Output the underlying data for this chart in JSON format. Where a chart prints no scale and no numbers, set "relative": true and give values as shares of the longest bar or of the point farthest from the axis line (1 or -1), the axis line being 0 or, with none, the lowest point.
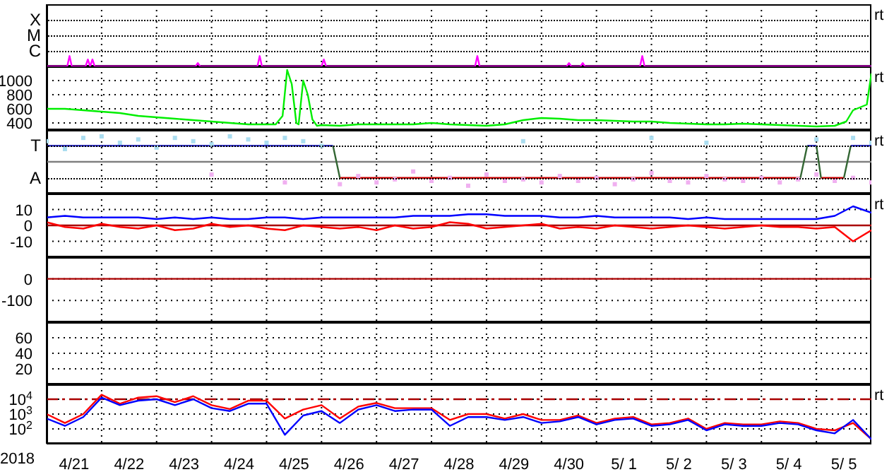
{
  "chart_data": [
    {
      "type": "line",
      "relative": true,
      "xlim": [
        "2018-04-21T00:00",
        "2018-05-06T00:00"
      ],
      "xticks": [
        {
          "value": "2018-04-22T00:00",
          "label": null
        },
        {
          "value": "2018-04-23T00:00",
          "label": null
        },
        {
          "value": "2018-04-24T00:00",
          "label": null
        },
        {
          "value": "2018-04-25T00:00",
          "label": null
        },
        {
          "value": "2018-04-26T00:00",
          "label": null
        },
        {
          "value": "2018-04-27T00:00",
          "label": null
        },
        {
          "value": "2018-04-28T00:00",
          "label": null
        },
        {
          "value": "2018-04-29T00:00",
          "label": null
        },
        {
          "value": "2018-04-30T00:00",
          "label": null
        },
        {
          "value": "2018-05-01T00:00",
          "label": null
        },
        {
          "value": "2018-05-02T00:00",
          "label": null
        },
        {
          "value": "2018-05-03T00:00",
          "label": null
        },
        {
          "value": "2018-05-04T00:00",
          "label": null
        },
        {
          "value": "2018-05-05T00:00",
          "label": null
        }
      ],
      "grid": true,
      "tick_labels": "y",
      "annotations": [
        "rt",
        "X",
        "M",
        "C"
      ],
      "series": [
        {
          "color": "#ff00ff",
          "x": [
            "2018-04-21T00:00",
            "2018-04-21T09:00",
            "2018-04-21T10:00",
            "2018-04-21T11:00",
            "2018-04-21T17:00",
            "2018-04-21T18:00",
            "2018-04-21T19:00",
            "2018-04-21T20:00",
            "2018-04-21T21:00",
            "2018-04-23T17:00",
            "2018-04-23T18:00",
            "2018-04-23T19:00",
            "2018-04-24T20:00",
            "2018-04-24T21:00",
            "2018-04-24T22:00",
            "2018-04-26T00:00",
            "2018-04-26T01:00",
            "2018-04-26T02:00",
            "2018-04-28T19:00",
            "2018-04-28T20:00",
            "2018-04-28T21:00",
            "2018-04-30T11:00",
            "2018-04-30T12:00",
            "2018-04-30T13:00",
            "2018-04-30T17:00",
            "2018-04-30T18:00",
            "2018-04-30T19:00",
            "2018-05-01T19:00",
            "2018-05-01T20:00",
            "2018-05-01T21:00",
            "2018-05-06T00:00"
          ],
          "values": [
            0,
            0,
            1,
            0,
            0,
            0.67,
            0,
            0.67,
            0,
            0,
            0.33,
            0,
            0,
            1,
            0,
            0,
            0.67,
            0,
            0,
            1,
            0,
            0,
            0.33,
            0,
            0,
            0.33,
            0,
            0,
            1,
            0,
            0
          ]
        }
      ]
    },
    {
      "type": "line",
      "ylim": [
        300,
        1200
      ],
      "yticks": [
        1000,
        800,
        600,
        400
      ],
      "xlim": [
        "2018-04-21T00:00",
        "2018-05-06T00:00"
      ],
      "xticks": [
        {
          "value": "2018-04-22T00:00",
          "label": null
        },
        {
          "value": "2018-04-23T00:00",
          "label": null
        },
        {
          "value": "2018-04-24T00:00",
          "label": null
        },
        {
          "value": "2018-04-25T00:00",
          "label": null
        },
        {
          "value": "2018-04-26T00:00",
          "label": null
        },
        {
          "value": "2018-04-27T00:00",
          "label": null
        },
        {
          "value": "2018-04-28T00:00",
          "label": null
        },
        {
          "value": "2018-04-29T00:00",
          "label": null
        },
        {
          "value": "2018-04-30T00:00",
          "label": null
        },
        {
          "value": "2018-05-01T00:00",
          "label": null
        },
        {
          "value": "2018-05-02T00:00",
          "label": null
        },
        {
          "value": "2018-05-03T00:00",
          "label": null
        },
        {
          "value": "2018-05-04T00:00",
          "label": null
        },
        {
          "value": "2018-05-05T00:00",
          "label": null
        }
      ],
      "grid": true,
      "tick_labels": "y",
      "annotations": [
        "rt"
      ],
      "series": [
        {
          "color": "#00ee00",
          "x": [
            "2018-04-21T00:00",
            "2018-04-21T08:00",
            "2018-04-21T16:00",
            "2018-04-22T00:00",
            "2018-04-22T08:00",
            "2018-04-22T16:00",
            "2018-04-23T00:00",
            "2018-04-23T08:00",
            "2018-04-23T16:00",
            "2018-04-24T00:00",
            "2018-04-24T08:00",
            "2018-04-24T16:00",
            "2018-04-25T00:00",
            "2018-04-25T04:00",
            "2018-04-25T07:00",
            "2018-04-25T09:00",
            "2018-04-25T11:00",
            "2018-04-25T13:00",
            "2018-04-25T14:00",
            "2018-04-25T16:00",
            "2018-04-25T18:00",
            "2018-04-25T20:00",
            "2018-04-25T22:00",
            "2018-04-26T00:00",
            "2018-04-26T08:00",
            "2018-04-26T16:00",
            "2018-04-27T00:00",
            "2018-04-27T08:00",
            "2018-04-27T16:00",
            "2018-04-28T00:00",
            "2018-04-28T08:00",
            "2018-04-28T16:00",
            "2018-04-29T00:00",
            "2018-04-29T08:00",
            "2018-04-29T16:00",
            "2018-04-30T00:00",
            "2018-04-30T08:00",
            "2018-04-30T16:00",
            "2018-05-01T00:00",
            "2018-05-01T08:00",
            "2018-05-01T16:00",
            "2018-05-02T00:00",
            "2018-05-02T08:00",
            "2018-05-02T16:00",
            "2018-05-03T00:00",
            "2018-05-03T08:00",
            "2018-05-03T16:00",
            "2018-05-04T00:00",
            "2018-05-04T08:00",
            "2018-05-04T16:00",
            "2018-05-05T00:00",
            "2018-05-05T08:00",
            "2018-05-05T13:00",
            "2018-05-05T16:00",
            "2018-05-05T22:00",
            "2018-05-06T00:00"
          ],
          "values": [
            600,
            600,
            580,
            560,
            540,
            500,
            480,
            460,
            440,
            420,
            400,
            380,
            380,
            380,
            500,
            1150,
            950,
            400,
            380,
            1000,
            800,
            450,
            360,
            370,
            360,
            380,
            380,
            380,
            380,
            400,
            380,
            370,
            360,
            380,
            440,
            470,
            460,
            440,
            440,
            430,
            420,
            420,
            400,
            390,
            380,
            380,
            390,
            380,
            370,
            360,
            350,
            360,
            420,
            580,
            660,
            1100
          ]
        }
      ]
    },
    {
      "type": "line",
      "relative": true,
      "xlim": [
        "2018-04-21T00:00",
        "2018-05-06T00:00"
      ],
      "xticks": [
        {
          "value": "2018-04-22T00:00",
          "label": null
        },
        {
          "value": "2018-04-23T00:00",
          "label": null
        },
        {
          "value": "2018-04-24T00:00",
          "label": null
        },
        {
          "value": "2018-04-25T00:00",
          "label": null
        },
        {
          "value": "2018-04-26T00:00",
          "label": null
        },
        {
          "value": "2018-04-27T00:00",
          "label": null
        },
        {
          "value": "2018-04-28T00:00",
          "label": null
        },
        {
          "value": "2018-04-29T00:00",
          "label": null
        },
        {
          "value": "2018-04-30T00:00",
          "label": null
        },
        {
          "value": "2018-05-01T00:00",
          "label": null
        },
        {
          "value": "2018-05-02T00:00",
          "label": null
        },
        {
          "value": "2018-05-03T00:00",
          "label": null
        },
        {
          "value": "2018-05-04T00:00",
          "label": null
        },
        {
          "value": "2018-05-05T00:00",
          "label": null
        }
      ],
      "grid": true,
      "tick_labels": "y",
      "annotations": [
        "rt",
        "T",
        "A"
      ],
      "ref_lines": [
        {
          "axis": "y",
          "value": 0,
          "color": "#808080"
        }
      ],
      "x": [
        "2018-04-21T00:00",
        "2018-04-21T08:00",
        "2018-04-21T16:00",
        "2018-04-22T00:00",
        "2018-04-22T08:00",
        "2018-04-22T16:00",
        "2018-04-23T00:00",
        "2018-04-23T08:00",
        "2018-04-23T16:00",
        "2018-04-24T00:00",
        "2018-04-24T08:00",
        "2018-04-24T16:00",
        "2018-04-25T00:00",
        "2018-04-25T08:00",
        "2018-04-25T16:00",
        "2018-04-26T00:00",
        "2018-04-26T08:00",
        "2018-04-26T16:00",
        "2018-04-27T00:00",
        "2018-04-27T08:00",
        "2018-04-27T16:00",
        "2018-04-28T00:00",
        "2018-04-28T08:00",
        "2018-04-28T16:00",
        "2018-04-29T00:00",
        "2018-04-29T08:00",
        "2018-04-29T16:00",
        "2018-04-30T00:00",
        "2018-04-30T08:00",
        "2018-04-30T16:00",
        "2018-05-01T00:00",
        "2018-05-01T08:00",
        "2018-05-01T16:00",
        "2018-05-02T00:00",
        "2018-05-02T08:00",
        "2018-05-02T16:00",
        "2018-05-03T00:00",
        "2018-05-03T08:00",
        "2018-05-03T16:00",
        "2018-05-04T00:00",
        "2018-05-04T08:00",
        "2018-05-04T16:00",
        "2018-05-05T00:00",
        "2018-05-05T08:00",
        "2018-05-05T16:00",
        "2018-05-06T00:00"
      ],
      "series": [
        {
          "type": "scatter",
          "marker": "square",
          "color": "#aaddf0",
          "values": [
            0.81,
            0.5,
            0.94,
            1,
            0.75,
            0.88,
            0.56,
            0.94,
            0.81,
            0.69,
            1,
            0.88,
            0.75,
            0.94,
            0.81,
            0.63,
            null,
            null,
            null,
            null,
            null,
            null,
            null,
            null,
            null,
            null,
            0.81,
            null,
            null,
            null,
            null,
            null,
            null,
            0.94,
            null,
            null,
            0.75,
            null,
            null,
            null,
            null,
            null,
            0.88,
            null,
            0.94,
            0.75
          ]
        },
        {
          "type": "scatter",
          "marker": "square",
          "color": "#f0b0f0",
          "values": [
            null,
            null,
            null,
            null,
            null,
            null,
            null,
            null,
            null,
            -0.5,
            null,
            null,
            null,
            -0.81,
            null,
            null,
            -0.88,
            -0.56,
            -0.81,
            -0.69,
            -0.38,
            -0.75,
            -0.63,
            -0.94,
            -0.5,
            -0.75,
            -0.69,
            -0.81,
            -0.56,
            -0.75,
            -0.63,
            -0.88,
            -0.69,
            -0.44,
            -0.75,
            -0.81,
            -0.56,
            -0.69,
            -0.75,
            -0.63,
            -0.81,
            -0.69,
            -0.5,
            -0.75,
            -0.63,
            -0.81
          ]
        },
        {
          "color": "#3333cc",
          "x": [
            "2018-04-21T00:00",
            "2018-04-26T05:00",
            "2018-04-30T00:00",
            "2018-05-04T20:00",
            "2018-05-05T00:00",
            "2018-05-05T08:00",
            "2018-05-05T15:00",
            "2018-05-06T00:00"
          ],
          "values": [
            0.63,
            0.63,
            null,
            0.63,
            0.63,
            null,
            0.63,
            0.63
          ]
        },
        {
          "color": "#cc0000",
          "x": [
            "2018-04-26T08:00",
            "2018-05-04T17:00",
            "2018-05-04T22:00",
            "2018-05-05T02:00",
            "2018-05-05T12:00"
          ],
          "values": [
            -0.63,
            -0.63,
            null,
            -0.63,
            -0.63
          ]
        },
        {
          "color": "#336633",
          "x": [
            "2018-04-26T05:00",
            "2018-04-26T08:00",
            "2018-04-30T00:00",
            "2018-05-04T17:00",
            "2018-05-04T20:00",
            "2018-05-04T22:00",
            "2018-05-05T00:00",
            "2018-05-05T02:00",
            "2018-05-05T08:00",
            "2018-05-05T12:00",
            "2018-05-05T15:00"
          ],
          "values": [
            0.63,
            -0.63,
            null,
            -0.63,
            0.63,
            null,
            0.63,
            -0.63,
            null,
            -0.63,
            0.63
          ]
        }
      ]
    },
    {
      "type": "line",
      "ylim": [
        -20,
        20
      ],
      "yticks": [
        10,
        0,
        -10
      ],
      "xlim": [
        "2018-04-21T00:00",
        "2018-05-06T00:00"
      ],
      "xticks": [
        {
          "value": "2018-04-22T00:00",
          "label": null
        },
        {
          "value": "2018-04-23T00:00",
          "label": null
        },
        {
          "value": "2018-04-24T00:00",
          "label": null
        },
        {
          "value": "2018-04-25T00:00",
          "label": null
        },
        {
          "value": "2018-04-26T00:00",
          "label": null
        },
        {
          "value": "2018-04-27T00:00",
          "label": null
        },
        {
          "value": "2018-04-28T00:00",
          "label": null
        },
        {
          "value": "2018-04-29T00:00",
          "label": null
        },
        {
          "value": "2018-04-30T00:00",
          "label": null
        },
        {
          "value": "2018-05-01T00:00",
          "label": null
        },
        {
          "value": "2018-05-02T00:00",
          "label": null
        },
        {
          "value": "2018-05-03T00:00",
          "label": null
        },
        {
          "value": "2018-05-04T00:00",
          "label": null
        },
        {
          "value": "2018-05-05T00:00",
          "label": null
        }
      ],
      "grid": true,
      "tick_labels": "y",
      "annotations": [
        "rt"
      ],
      "ref_lines": [
        {
          "axis": "y",
          "value": 0,
          "color": "#aa0000"
        }
      ],
      "x": [
        "2018-04-21T00:00",
        "2018-04-21T08:00",
        "2018-04-21T16:00",
        "2018-04-22T00:00",
        "2018-04-22T08:00",
        "2018-04-22T16:00",
        "2018-04-23T00:00",
        "2018-04-23T08:00",
        "2018-04-23T16:00",
        "2018-04-24T00:00",
        "2018-04-24T08:00",
        "2018-04-24T16:00",
        "2018-04-25T00:00",
        "2018-04-25T08:00",
        "2018-04-25T16:00",
        "2018-04-26T00:00",
        "2018-04-26T08:00",
        "2018-04-26T16:00",
        "2018-04-27T00:00",
        "2018-04-27T08:00",
        "2018-04-27T16:00",
        "2018-04-28T00:00",
        "2018-04-28T08:00",
        "2018-04-28T16:00",
        "2018-04-29T00:00",
        "2018-04-29T08:00",
        "2018-04-29T16:00",
        "2018-04-30T00:00",
        "2018-04-30T08:00",
        "2018-04-30T16:00",
        "2018-05-01T00:00",
        "2018-05-01T08:00",
        "2018-05-01T16:00",
        "2018-05-02T00:00",
        "2018-05-02T08:00",
        "2018-05-02T16:00",
        "2018-05-03T00:00",
        "2018-05-03T08:00",
        "2018-05-03T16:00",
        "2018-05-04T00:00",
        "2018-05-04T08:00",
        "2018-05-04T16:00",
        "2018-05-05T00:00",
        "2018-05-05T08:00",
        "2018-05-05T16:00",
        "2018-05-06T00:00"
      ],
      "series": [
        {
          "color": "#0000ff",
          "values": [
            5,
            6,
            5,
            5,
            5,
            5,
            4,
            5,
            4,
            5,
            4,
            4,
            5,
            5,
            4,
            5,
            5,
            5,
            5,
            5,
            6,
            6,
            6,
            7,
            7,
            6,
            6,
            6,
            5,
            5,
            6,
            5,
            5,
            5,
            5,
            4,
            5,
            4,
            4,
            4,
            4,
            4,
            4,
            6,
            12,
            8
          ]
        },
        {
          "color": "#ff0000",
          "values": [
            2,
            -1,
            -2,
            1,
            -1,
            -2,
            0,
            -3,
            -2,
            1,
            -1,
            0,
            -2,
            -3,
            0,
            -1,
            -2,
            -1,
            -3,
            0,
            -2,
            -1,
            2,
            1,
            -2,
            -1,
            0,
            1,
            -2,
            -1,
            -2,
            0,
            -1,
            -2,
            -1,
            0,
            -1,
            -2,
            -1,
            0,
            -1,
            -1,
            -2,
            -1,
            -10,
            -3
          ]
        }
      ]
    },
    {
      "type": "line",
      "ylim": [
        -200,
        100
      ],
      "yticks": [
        0,
        -100
      ],
      "xlim": [
        "2018-04-21T00:00",
        "2018-05-06T00:00"
      ],
      "xticks": [
        {
          "value": "2018-04-22T00:00",
          "label": null
        },
        {
          "value": "2018-04-23T00:00",
          "label": null
        },
        {
          "value": "2018-04-24T00:00",
          "label": null
        },
        {
          "value": "2018-04-25T00:00",
          "label": null
        },
        {
          "value": "2018-04-26T00:00",
          "label": null
        },
        {
          "value": "2018-04-27T00:00",
          "label": null
        },
        {
          "value": "2018-04-28T00:00",
          "label": null
        },
        {
          "value": "2018-04-29T00:00",
          "label": null
        },
        {
          "value": "2018-04-30T00:00",
          "label": null
        },
        {
          "value": "2018-05-01T00:00",
          "label": null
        },
        {
          "value": "2018-05-02T00:00",
          "label": null
        },
        {
          "value": "2018-05-03T00:00",
          "label": null
        },
        {
          "value": "2018-05-04T00:00",
          "label": null
        },
        {
          "value": "2018-05-05T00:00",
          "label": null
        }
      ],
      "grid": true,
      "tick_labels": "y",
      "ref_lines": [
        {
          "axis": "y",
          "value": 0,
          "color": "#aa0000"
        }
      ]
    },
    {
      "type": "line",
      "ylim": [
        0,
        80
      ],
      "yticks": [
        60,
        40,
        20
      ],
      "xlim": [
        "2018-04-21T00:00",
        "2018-05-06T00:00"
      ],
      "xticks": [
        {
          "value": "2018-04-22T00:00",
          "label": null
        },
        {
          "value": "2018-04-23T00:00",
          "label": null
        },
        {
          "value": "2018-04-24T00:00",
          "label": null
        },
        {
          "value": "2018-04-25T00:00",
          "label": null
        },
        {
          "value": "2018-04-26T00:00",
          "label": null
        },
        {
          "value": "2018-04-27T00:00",
          "label": null
        },
        {
          "value": "2018-04-28T00:00",
          "label": null
        },
        {
          "value": "2018-04-29T00:00",
          "label": null
        },
        {
          "value": "2018-04-30T00:00",
          "label": null
        },
        {
          "value": "2018-05-01T00:00",
          "label": null
        },
        {
          "value": "2018-05-02T00:00",
          "label": null
        },
        {
          "value": "2018-05-03T00:00",
          "label": null
        },
        {
          "value": "2018-05-04T00:00",
          "label": null
        },
        {
          "value": "2018-05-05T00:00",
          "label": null
        }
      ],
      "grid": true,
      "tick_labels": "y"
    },
    {
      "type": "line",
      "log": true,
      "ylim": [
        10,
        100000
      ],
      "yticks": [
        {
          "value": 10000,
          "label": "10$^{4}$"
        },
        {
          "value": 1000,
          "label": "10$^{3}$"
        },
        {
          "value": 100,
          "label": "10$^{2}$"
        }
      ],
      "xlabel": "2018",
      "xlim": [
        "2018-04-21T00:00",
        "2018-05-06T00:00"
      ],
      "xticks": [
        {
          "value": "2018-04-21T12:00",
          "label": "4/21"
        },
        {
          "value": "2018-04-22T12:00",
          "label": "4/22"
        },
        {
          "value": "2018-04-23T12:00",
          "label": "4/23"
        },
        {
          "value": "2018-04-24T12:00",
          "label": "4/24"
        },
        {
          "value": "2018-04-25T12:00",
          "label": "4/25"
        },
        {
          "value": "2018-04-26T12:00",
          "label": "4/26"
        },
        {
          "value": "2018-04-27T12:00",
          "label": "4/27"
        },
        {
          "value": "2018-04-28T12:00",
          "label": "4/28"
        },
        {
          "value": "2018-04-29T12:00",
          "label": "4/29"
        },
        {
          "value": "2018-04-30T12:00",
          "label": "4/30"
        },
        {
          "value": "2018-05-01T12:00",
          "label": "5/ 1"
        },
        {
          "value": "2018-05-02T12:00",
          "label": "5/ 2"
        },
        {
          "value": "2018-05-03T12:00",
          "label": "5/ 3"
        },
        {
          "value": "2018-05-04T12:00",
          "label": "5/ 4"
        },
        {
          "value": "2018-05-05T12:00",
          "label": "5/ 5"
        },
        {
          "value": "2018-04-22T00:00",
          "label": null
        },
        {
          "value": "2018-04-23T00:00",
          "label": null
        },
        {
          "value": "2018-04-24T00:00",
          "label": null
        },
        {
          "value": "2018-04-25T00:00",
          "label": null
        },
        {
          "value": "2018-04-26T00:00",
          "label": null
        },
        {
          "value": "2018-04-27T00:00",
          "label": null
        },
        {
          "value": "2018-04-28T00:00",
          "label": null
        },
        {
          "value": "2018-04-29T00:00",
          "label": null
        },
        {
          "value": "2018-04-30T00:00",
          "label": null
        },
        {
          "value": "2018-05-01T00:00",
          "label": null
        },
        {
          "value": "2018-05-02T00:00",
          "label": null
        },
        {
          "value": "2018-05-03T00:00",
          "label": null
        },
        {
          "value": "2018-05-04T00:00",
          "label": null
        },
        {
          "value": "2018-05-05T00:00",
          "label": null
        }
      ],
      "grid": true,
      "annotations": [
        "rt"
      ],
      "ref_lines": [
        {
          "axis": "y",
          "value": 10000,
          "color": "#aa0000",
          "line_style": "dashed"
        }
      ],
      "x": [
        "2018-04-21T00:00",
        "2018-04-21T08:00",
        "2018-04-21T16:00",
        "2018-04-22T00:00",
        "2018-04-22T08:00",
        "2018-04-22T16:00",
        "2018-04-23T00:00",
        "2018-04-23T08:00",
        "2018-04-23T16:00",
        "2018-04-24T00:00",
        "2018-04-24T08:00",
        "2018-04-24T16:00",
        "2018-04-25T00:00",
        "2018-04-25T08:00",
        "2018-04-25T16:00",
        "2018-04-26T00:00",
        "2018-04-26T08:00",
        "2018-04-26T16:00",
        "2018-04-27T00:00",
        "2018-04-27T08:00",
        "2018-04-27T16:00",
        "2018-04-28T00:00",
        "2018-04-28T08:00",
        "2018-04-28T16:00",
        "2018-04-29T00:00",
        "2018-04-29T08:00",
        "2018-04-29T16:00",
        "2018-04-30T00:00",
        "2018-04-30T08:00",
        "2018-04-30T16:00",
        "2018-05-01T00:00",
        "2018-05-01T08:00",
        "2018-05-01T16:00",
        "2018-05-02T00:00",
        "2018-05-02T08:00",
        "2018-05-02T16:00",
        "2018-05-03T00:00",
        "2018-05-03T08:00",
        "2018-05-03T16:00",
        "2018-05-04T00:00",
        "2018-05-04T08:00",
        "2018-05-04T16:00",
        "2018-05-05T00:00",
        "2018-05-05T08:00",
        "2018-05-05T16:00",
        "2018-05-06T00:00"
      ],
      "series": [
        {
          "color": "#ff0000",
          "values": [
            1000,
            250,
            1000,
            20000,
            5000,
            13000,
            16000,
            6300,
            16000,
            4000,
            2200,
            8000,
            8000,
            500,
            2000,
            4000,
            500,
            3200,
            5600,
            2500,
            2500,
            2500,
            400,
            1000,
            1000,
            500,
            1000,
            400,
            400,
            800,
            250,
            500,
            630,
            200,
            250,
            500,
            100,
            250,
            200,
            200,
            320,
            250,
            100,
            80,
            250,
            20
          ]
        },
        {
          "color": "#0000ff",
          "values": [
            500,
            160,
            630,
            13000,
            4000,
            8000,
            10000,
            4000,
            10000,
            2500,
            1600,
            5000,
            5000,
            40,
            800,
            1600,
            250,
            2000,
            4000,
            1600,
            2000,
            2000,
            160,
            630,
            630,
            400,
            630,
            250,
            320,
            630,
            200,
            400,
            500,
            160,
            200,
            400,
            80,
            200,
            160,
            160,
            250,
            200,
            80,
            50,
            400,
            20
          ]
        }
      ]
    }
  ]
}
